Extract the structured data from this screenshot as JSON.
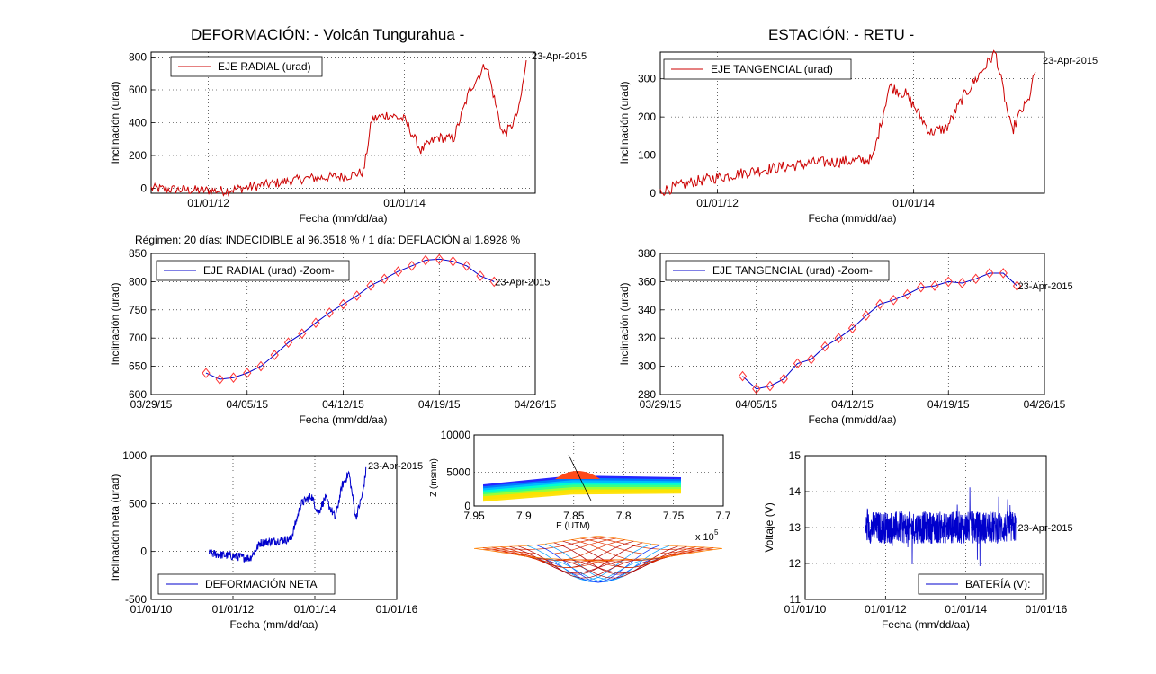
{
  "titles": {
    "left": "DEFORMACIÓN: - Volcán Tungurahua -",
    "right": "ESTACIÓN: - RETU -"
  },
  "regimen": "Régimen: 20 días: INDECIDIBLE al 96.3518 % / 1 día: DEFLACIÓN al 1.8928 %",
  "colors": {
    "red": "#cc0000",
    "blue": "#0000cc",
    "marker": "#ff3333"
  },
  "chart_data": [
    {
      "id": "radial",
      "type": "line",
      "legend": "EJE RADIAL (urad)",
      "xlabel": "Fecha (mm/dd/aa)",
      "ylabel": "Inclinación (urad)",
      "end_label": "23-Apr-2015",
      "xticks": [
        "01/01/12",
        "01/01/14"
      ],
      "ylim": [
        -30,
        830
      ],
      "yticks": [
        0,
        200,
        400,
        600,
        800
      ],
      "grid": true,
      "color": "red",
      "series": [
        {
          "x": [
            "2011-06",
            "2011-10",
            "2012-03",
            "2012-09",
            "2013-01",
            "2013-06",
            "2013-08",
            "2013-09",
            "2013-11",
            "2014-01",
            "2014-03",
            "2014-05",
            "2014-07",
            "2014-09",
            "2014-11",
            "2015-01",
            "2015-02",
            "2015-03",
            "2015-04"
          ],
          "values": [
            0,
            -10,
            -15,
            30,
            60,
            75,
            100,
            420,
            450,
            420,
            230,
            310,
            300,
            600,
            760,
            330,
            370,
            480,
            800
          ]
        }
      ]
    },
    {
      "id": "tangencial",
      "type": "line",
      "legend": "EJE TANGENCIAL (urad)",
      "xlabel": "Fecha (mm/dd/aa)",
      "ylabel": "Inclinación (urad)",
      "end_label": "23-Apr-2015",
      "xticks": [
        "01/01/12",
        "01/01/14"
      ],
      "ylim": [
        0,
        370
      ],
      "yticks": [
        0,
        100,
        200,
        300
      ],
      "grid": true,
      "color": "red",
      "series": [
        {
          "x": [
            "2011-06",
            "2011-10",
            "2012-06",
            "2013-01",
            "2013-06",
            "2013-08",
            "2013-10",
            "2013-12",
            "2014-01",
            "2014-03",
            "2014-05",
            "2014-07",
            "2014-09",
            "2014-11",
            "2015-01",
            "2015-02",
            "2015-03",
            "2015-04"
          ],
          "values": [
            5,
            30,
            60,
            80,
            85,
            90,
            280,
            260,
            230,
            160,
            170,
            250,
            310,
            370,
            160,
            210,
            240,
            330
          ]
        }
      ]
    },
    {
      "id": "radial-zoom",
      "type": "line",
      "legend": "EJE RADIAL (urad) -Zoom-",
      "xlabel": "Fecha (mm/dd/aa)",
      "ylabel": "Inclinación (urad)",
      "end_label": "23-Apr-2015",
      "xticks": [
        "03/29/15",
        "04/05/15",
        "04/12/15",
        "04/19/15",
        "04/26/15"
      ],
      "ylim": [
        600,
        850
      ],
      "yticks": [
        600,
        650,
        700,
        750,
        800,
        850
      ],
      "grid": true,
      "color": "blue",
      "x_days": [
        4,
        5,
        6,
        7,
        8,
        9,
        10,
        11,
        12,
        13,
        14,
        15,
        16,
        17,
        18,
        19,
        20,
        21,
        22,
        23,
        24,
        25
      ],
      "values": [
        638,
        627,
        630,
        638,
        650,
        670,
        692,
        708,
        727,
        745,
        760,
        775,
        793,
        805,
        818,
        828,
        838,
        840,
        836,
        828,
        810,
        800
      ]
    },
    {
      "id": "tangencial-zoom",
      "type": "line",
      "legend": "EJE TANGENCIAL (urad) -Zoom-",
      "xlabel": "Fecha (mm/dd/aa)",
      "ylabel": "Inclinación (urad)",
      "end_label": "23-Apr-2015",
      "xticks": [
        "03/29/15",
        "04/05/15",
        "04/12/15",
        "04/19/15",
        "04/26/15"
      ],
      "ylim": [
        280,
        380
      ],
      "yticks": [
        280,
        300,
        320,
        340,
        360,
        380
      ],
      "grid": true,
      "color": "blue",
      "x_days": [
        6,
        7,
        8,
        9,
        10,
        11,
        12,
        13,
        14,
        15,
        16,
        17,
        18,
        19,
        20,
        21,
        22,
        23,
        24,
        25,
        26
      ],
      "values": [
        293,
        284,
        286,
        291,
        302,
        305,
        314,
        320,
        327,
        336,
        344,
        347,
        351,
        356,
        357,
        360,
        359,
        362,
        366,
        366,
        357
      ]
    },
    {
      "id": "neta",
      "type": "line",
      "legend": "DEFORMACIÓN NETA",
      "xlabel": "Fecha (mm/dd/aa)",
      "ylabel": "Inclinación neta (urad)",
      "end_label": "23-Apr-2015",
      "xticks": [
        "01/01/10",
        "01/01/12",
        "01/01/14",
        "01/01/16"
      ],
      "ylim": [
        -500,
        1000
      ],
      "yticks": [
        -500,
        0,
        500,
        1000
      ],
      "grid": true,
      "color": "blue",
      "series": [
        {
          "x": [
            "2011-06",
            "2012-06",
            "2012-09",
            "2013-06",
            "2013-09",
            "2013-12",
            "2014-02",
            "2014-04",
            "2014-07",
            "2014-09",
            "2014-11",
            "2015-01",
            "2015-03",
            "2015-04"
          ],
          "values": [
            -20,
            -70,
            90,
            130,
            500,
            580,
            400,
            560,
            350,
            690,
            820,
            350,
            600,
            850
          ]
        }
      ]
    },
    {
      "id": "bateria",
      "type": "line",
      "legend": "BATERÍA (V):",
      "xlabel": "Fecha (mm/dd/aa)",
      "ylabel": "Voltaje (V)",
      "end_label": "23-Apr-2015",
      "xticks": [
        "01/01/10",
        "01/01/12",
        "01/01/14",
        "01/01/16"
      ],
      "ylim": [
        11,
        15
      ],
      "yticks": [
        11,
        12,
        13,
        14,
        15
      ],
      "grid": true,
      "color": "blue",
      "range_x": [
        "2011-07",
        "2015-04"
      ],
      "mean": 13.0,
      "band": 0.45
    },
    {
      "id": "model",
      "type": "scatter",
      "xlabel": "E (UTM)",
      "ylabel": "Z (msnm)",
      "xticks": [
        "7.95",
        "7.9",
        "7.85",
        "7.8",
        "7.75",
        "7.7"
      ],
      "yticks": [
        "0",
        "5000",
        "10000"
      ],
      "exponent": "x 10",
      "exponent_power": "5",
      "grid": true
    }
  ]
}
